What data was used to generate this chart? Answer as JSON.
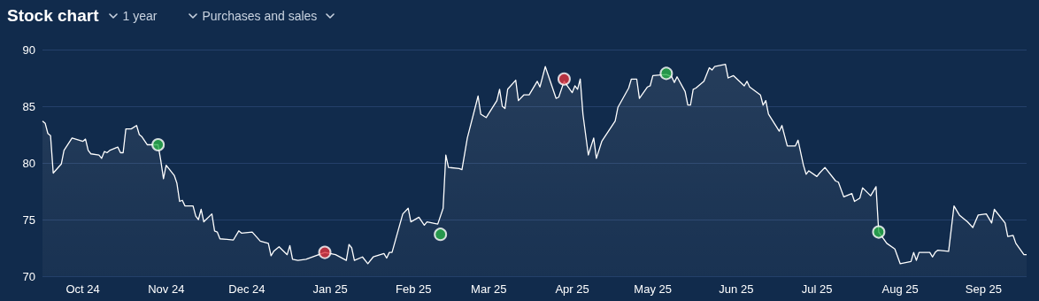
{
  "chart_data": {
    "type": "area",
    "title": "Stock chart",
    "annotations": [
      "1 year",
      "Purchases and sales"
    ],
    "xlim": [
      "2024-09-16",
      "2025-09-17"
    ],
    "xticks": [
      {
        "value": "2024-10-01",
        "label": "Oct 24"
      },
      {
        "value": "2024-11-01",
        "label": "Nov 24"
      },
      {
        "value": "2024-12-01",
        "label": "Dec 24"
      },
      {
        "value": "2025-01-01",
        "label": "Jan 25"
      },
      {
        "value": "2025-02-01",
        "label": "Feb 25"
      },
      {
        "value": "2025-03-01",
        "label": "Mar 25"
      },
      {
        "value": "2025-04-01",
        "label": "Apr 25"
      },
      {
        "value": "2025-05-01",
        "label": "May 25"
      },
      {
        "value": "2025-06-01",
        "label": "Jun 25"
      },
      {
        "value": "2025-07-01",
        "label": "Jul 25"
      },
      {
        "value": "2025-08-01",
        "label": "Aug 25"
      },
      {
        "value": "2025-09-01",
        "label": "Sep 25"
      }
    ],
    "ylim": [
      70,
      90
    ],
    "yticks": [
      70,
      75,
      80,
      85,
      90
    ],
    "grid": "y",
    "series": [
      {
        "color": "#ffffff",
        "marker": "none",
        "x": [
          "2024-09-16",
          "2024-09-17",
          "2024-09-18",
          "2024-09-19",
          "2024-09-20",
          "2024-09-23",
          "2024-09-24",
          "2024-09-27",
          "2024-10-01",
          "2024-10-02",
          "2024-10-03",
          "2024-10-04",
          "2024-10-07",
          "2024-10-08",
          "2024-10-09",
          "2024-10-10",
          "2024-10-11",
          "2024-10-14",
          "2024-10-15",
          "2024-10-16",
          "2024-10-17",
          "2024-10-19",
          "2024-10-21",
          "2024-10-22",
          "2024-10-23",
          "2024-10-25",
          "2024-10-29",
          "2024-10-30",
          "2024-10-31",
          "2024-11-01",
          "2024-11-04",
          "2024-11-05",
          "2024-11-06",
          "2024-11-07",
          "2024-11-08",
          "2024-11-11",
          "2024-11-12",
          "2024-11-13",
          "2024-11-14",
          "2024-11-15",
          "2024-11-18",
          "2024-11-19",
          "2024-11-20",
          "2024-11-21",
          "2024-11-26",
          "2024-11-28",
          "2024-11-29",
          "2024-12-03",
          "2024-12-06",
          "2024-12-09",
          "2024-12-10",
          "2024-12-11",
          "2024-12-13",
          "2024-12-16",
          "2024-12-17",
          "2024-12-18",
          "2024-12-20",
          "2024-12-23",
          "2024-12-30",
          "2025-01-03",
          "2025-01-07",
          "2025-01-08",
          "2025-01-09",
          "2025-01-10",
          "2025-01-13",
          "2025-01-15",
          "2025-01-17",
          "2025-01-21",
          "2025-01-22",
          "2025-01-23",
          "2025-01-24",
          "2025-01-28",
          "2025-01-30",
          "2025-01-31",
          "2025-02-03",
          "2025-02-05",
          "2025-02-06",
          "2025-02-10",
          "2025-02-12",
          "2025-02-13",
          "2025-02-14",
          "2025-02-18",
          "2025-02-19",
          "2025-02-21",
          "2025-02-25",
          "2025-02-26",
          "2025-02-28",
          "2025-03-04",
          "2025-03-05",
          "2025-03-06",
          "2025-03-07",
          "2025-03-08",
          "2025-03-11",
          "2025-03-12",
          "2025-03-14",
          "2025-03-16",
          "2025-03-19",
          "2025-03-20",
          "2025-03-22",
          "2025-03-26",
          "2025-03-27",
          "2025-03-29",
          "2025-04-01",
          "2025-04-02",
          "2025-04-03",
          "2025-04-04",
          "2025-04-05",
          "2025-04-07",
          "2025-04-09",
          "2025-04-10",
          "2025-04-12",
          "2025-04-17",
          "2025-04-18",
          "2025-04-22",
          "2025-04-23",
          "2025-04-25",
          "2025-04-26",
          "2025-04-29",
          "2025-04-30",
          "2025-05-01",
          "2025-05-06",
          "2025-05-08",
          "2025-05-09",
          "2025-05-10",
          "2025-05-13",
          "2025-05-14",
          "2025-05-15",
          "2025-05-16",
          "2025-05-17",
          "2025-05-20",
          "2025-05-22",
          "2025-05-23",
          "2025-05-24",
          "2025-05-28",
          "2025-05-29",
          "2025-05-31",
          "2025-06-04",
          "2025-06-05",
          "2025-06-06",
          "2025-06-10",
          "2025-06-11",
          "2025-06-12",
          "2025-06-13",
          "2025-06-17",
          "2025-06-18",
          "2025-06-20",
          "2025-06-23",
          "2025-06-24",
          "2025-06-26",
          "2025-06-27",
          "2025-06-28",
          "2025-07-01",
          "2025-07-02",
          "2025-07-04",
          "2025-07-08",
          "2025-07-09",
          "2025-07-11",
          "2025-07-14",
          "2025-07-15",
          "2025-07-17",
          "2025-07-18",
          "2025-07-21",
          "2025-07-23",
          "2025-07-24",
          "2025-07-27",
          "2025-07-30",
          "2025-08-01",
          "2025-08-05",
          "2025-08-06",
          "2025-08-07",
          "2025-08-08",
          "2025-08-12",
          "2025-08-13",
          "2025-08-14",
          "2025-08-15",
          "2025-08-19",
          "2025-08-21",
          "2025-08-23",
          "2025-08-26",
          "2025-08-28",
          "2025-08-30",
          "2025-09-02",
          "2025-09-04",
          "2025-09-05",
          "2025-09-09",
          "2025-09-10",
          "2025-09-12",
          "2025-09-13",
          "2025-09-16",
          "2025-09-17"
        ],
        "values": [
          83.7,
          83.5,
          82.6,
          82.4,
          79.1,
          79.9,
          81.1,
          82.2,
          81.9,
          82.1,
          81.1,
          80.8,
          80.7,
          80.4,
          81.0,
          80.9,
          81.1,
          81.4,
          80.9,
          80.9,
          83.0,
          83.0,
          83.3,
          82.5,
          82.3,
          81.6,
          81.6,
          80.2,
          78.6,
          79.8,
          78.9,
          78.2,
          76.6,
          76.7,
          76.2,
          76.2,
          75.3,
          75.0,
          75.9,
          74.8,
          75.5,
          74.0,
          73.9,
          73.3,
          73.2,
          74.0,
          73.8,
          73.9,
          73.1,
          72.9,
          71.8,
          72.2,
          72.6,
          71.9,
          72.7,
          71.5,
          71.4,
          71.5,
          72.1,
          71.9,
          71.4,
          72.8,
          72.5,
          71.4,
          71.7,
          71.1,
          71.7,
          72.0,
          71.6,
          72.1,
          72.1,
          75.5,
          76.0,
          74.8,
          75.2,
          74.5,
          74.8,
          74.6,
          76.0,
          80.7,
          79.6,
          79.5,
          79.4,
          82.2,
          85.9,
          84.3,
          84.0,
          85.5,
          86.5,
          85.0,
          84.8,
          86.5,
          87.3,
          85.5,
          86.0,
          86.0,
          87.2,
          86.7,
          88.5,
          85.7,
          85.8,
          87.2,
          86.2,
          86.8,
          86.5,
          87.4,
          84.3,
          80.7,
          82.2,
          80.4,
          81.9,
          83.7,
          84.9,
          86.6,
          87.4,
          87.4,
          85.7,
          86.7,
          86.8,
          87.7,
          87.8,
          87.6,
          87.1,
          87.6,
          86.3,
          85.1,
          85.1,
          86.5,
          86.6,
          87.2,
          88.4,
          88.2,
          88.5,
          88.7,
          87.5,
          87.7,
          86.8,
          87.2,
          86.7,
          86.0,
          85.1,
          85.5,
          84.3,
          82.8,
          83.3,
          81.5,
          81.5,
          82.0,
          79.8,
          79.0,
          79.3,
          78.8,
          79.1,
          79.6,
          78.4,
          78.3,
          77.0,
          77.3,
          76.6,
          76.9,
          77.8,
          77.1,
          77.9,
          73.9,
          72.9,
          72.4,
          71.1,
          71.3,
          72.1,
          71.4,
          72.1,
          72.1,
          71.7,
          72.1,
          72.3,
          72.2,
          76.2,
          75.4,
          74.8,
          74.3,
          75.4,
          75.5,
          74.7,
          75.9,
          74.7,
          73.5,
          73.6,
          72.9,
          71.9,
          71.9
        ]
      },
      {
        "type": "scatter",
        "color": "#2bb04a",
        "marker": "circle",
        "x": [
          "2024-10-29",
          "2025-02-11",
          "2025-05-06",
          "2025-07-24"
        ],
        "values": [
          81.6,
          73.7,
          87.9,
          73.9
        ]
      },
      {
        "type": "scatter",
        "color": "#e0343e",
        "marker": "circle",
        "x": [
          "2024-12-30",
          "2025-03-29"
        ],
        "values": [
          72.1,
          87.4
        ]
      }
    ]
  }
}
